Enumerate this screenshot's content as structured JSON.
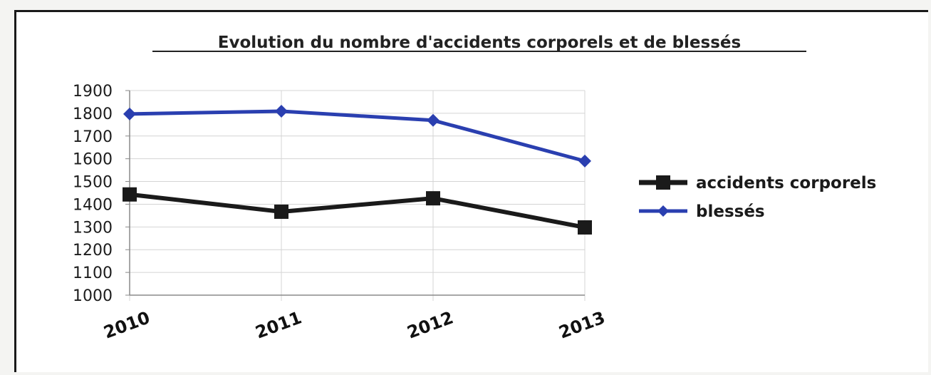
{
  "chart_data": {
    "type": "line",
    "title": "Evolution du nombre d'accidents corporels et de blessés",
    "categories": [
      "2010",
      "2011",
      "2012",
      "2013"
    ],
    "series": [
      {
        "name": "accidents corporels",
        "values": [
          1443,
          1367,
          1426,
          1298
        ],
        "color": "#1a1a1a",
        "marker": "square"
      },
      {
        "name": "blessés",
        "values": [
          1797,
          1809,
          1769,
          1590
        ],
        "color": "#2a3fb0",
        "marker": "diamond"
      }
    ],
    "ylim": [
      1000,
      1900
    ],
    "yticks": [
      "1900",
      "1800",
      "1700",
      "1600",
      "1500",
      "1400",
      "1300",
      "1200",
      "1100",
      "1000"
    ],
    "grid": true,
    "legend_position": "right"
  }
}
